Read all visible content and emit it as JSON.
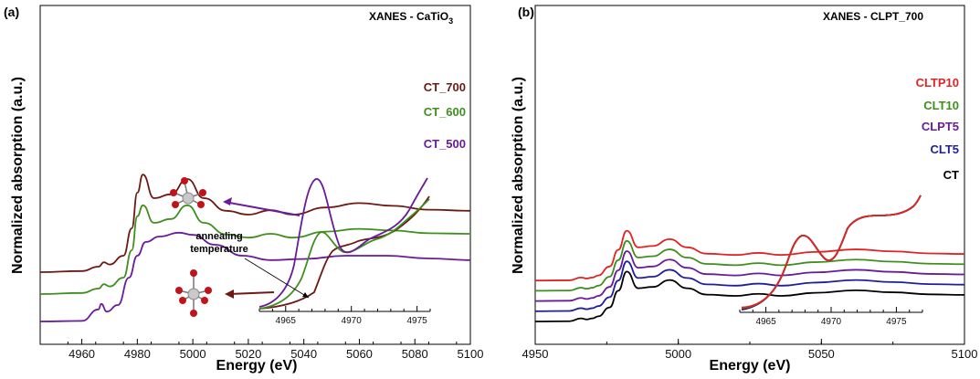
{
  "panel_a": {
    "label": "(a)",
    "title": "XANES - CaTiO",
    "title_sub": "3",
    "xlabel": "Energy (eV)",
    "ylabel": "Normalized absorption (a.u.)",
    "inset_ticks": [
      "4965",
      "4970",
      "4975"
    ],
    "annotation": [
      "annealing",
      "temperature"
    ],
    "colors": {
      "CT_700": "#6b1a14",
      "CT_600": "#3f8f1e",
      "CT_500": "#6a1b9a"
    }
  },
  "panel_b": {
    "label": "(b)",
    "title": "XANES - CLPT_700",
    "xlabel": "Energy (eV)",
    "ylabel": "Normalized absorption (a.u.)",
    "inset_ticks": [
      "4965",
      "4970",
      "4975"
    ],
    "colors": {
      "CLTP10": "#e02424",
      "CLT10": "#3f8f1e",
      "CLPT5": "#6a1b9a",
      "CLT5": "#1f1f9a",
      "CT": "#000000"
    }
  },
  "chart_data": [
    {
      "type": "line",
      "title": "XANES - CaTiO3",
      "xlabel": "Energy (eV)",
      "ylabel": "Normalized absorption (a.u.)",
      "xlim": [
        4945,
        5100
      ],
      "xticks": [
        4960,
        4980,
        5000,
        5020,
        5040,
        5060,
        5080,
        5100
      ],
      "yticks_shown": false,
      "series": [
        {
          "name": "CT_700",
          "offset": 0.9,
          "peak_white_line_x": 4982,
          "x": [
            4945,
            4960,
            4966,
            4968,
            4970,
            4975,
            4978,
            4980,
            4982,
            4986,
            4992,
            4998,
            5004,
            5012,
            5020,
            5028,
            5036,
            5048,
            5060,
            5072,
            5085,
            5100
          ],
          "y": [
            0.0,
            0.02,
            0.1,
            0.18,
            0.14,
            0.3,
            0.8,
            1.45,
            1.78,
            1.35,
            1.42,
            1.7,
            1.35,
            1.12,
            1.05,
            1.13,
            1.05,
            1.18,
            1.26,
            1.21,
            1.14,
            1.12
          ]
        },
        {
          "name": "CT_600",
          "offset": 0.5,
          "x": [
            4945,
            4960,
            4966,
            4968,
            4970,
            4975,
            4978,
            4980,
            4982,
            4986,
            4992,
            4998,
            5004,
            5012,
            5020,
            5028,
            5036,
            5048,
            5060,
            5072,
            5085,
            5100
          ],
          "y": [
            0.0,
            0.02,
            0.1,
            0.18,
            0.14,
            0.3,
            0.8,
            1.42,
            1.62,
            1.3,
            1.37,
            1.62,
            1.3,
            1.09,
            1.03,
            1.1,
            1.03,
            1.14,
            1.19,
            1.16,
            1.11,
            1.1
          ]
        },
        {
          "name": "CT_500",
          "offset": 0.0,
          "x": [
            4945,
            4960,
            4966,
            4967,
            4969,
            4973,
            4977,
            4980,
            4983,
            4988,
            4995,
            5000,
            5008,
            5018,
            5028,
            5040,
            5055,
            5070,
            5085,
            5100
          ],
          "y": [
            0.0,
            0.01,
            0.22,
            0.32,
            0.18,
            0.3,
            0.8,
            1.2,
            1.45,
            1.55,
            1.62,
            1.58,
            1.4,
            1.2,
            1.12,
            1.14,
            1.2,
            1.2,
            1.15,
            1.12
          ]
        }
      ],
      "inset": {
        "xlim": [
          4963,
          4976
        ],
        "xticks": [
          4965,
          4970,
          4975
        ],
        "series_names": [
          "CT_500",
          "CT_600",
          "CT_700"
        ]
      }
    },
    {
      "type": "line",
      "title": "XANES - CLPT_700",
      "xlabel": "Energy (eV)",
      "ylabel": "Normalized absorption (a.u.)",
      "xlim": [
        4950,
        5100
      ],
      "xticks": [
        4950,
        5000,
        5050,
        5100
      ],
      "yticks_shown": false,
      "series": [
        {
          "name": "CLTP10",
          "offset": 1.6,
          "x": [
            4950,
            4962,
            4966,
            4968,
            4970,
            4972,
            4976,
            4979,
            4982,
            4986,
            4991,
            4997,
            5003,
            5010,
            5020,
            5028,
            5036,
            5048,
            5062,
            5075,
            5088,
            5100
          ],
          "y": [
            0.0,
            0.01,
            0.12,
            0.08,
            0.12,
            0.2,
            0.55,
            1.2,
            1.95,
            1.3,
            1.35,
            1.62,
            1.3,
            1.05,
            1.0,
            1.08,
            1.0,
            1.12,
            1.22,
            1.14,
            1.06,
            1.04
          ]
        },
        {
          "name": "CLT10",
          "offset": 1.2,
          "x": [
            4950,
            4962,
            4966,
            4968,
            4970,
            4972,
            4976,
            4979,
            4982,
            4986,
            4991,
            4997,
            5003,
            5010,
            5020,
            5028,
            5036,
            5048,
            5062,
            5075,
            5088,
            5100
          ],
          "y": [
            0.0,
            0.01,
            0.12,
            0.08,
            0.12,
            0.2,
            0.55,
            1.2,
            1.95,
            1.3,
            1.35,
            1.62,
            1.3,
            1.05,
            1.0,
            1.08,
            1.0,
            1.12,
            1.22,
            1.14,
            1.06,
            1.04
          ]
        },
        {
          "name": "CLPT5",
          "offset": 0.8,
          "x": [
            4950,
            4962,
            4966,
            4968,
            4970,
            4972,
            4976,
            4979,
            4982,
            4986,
            4991,
            4997,
            5003,
            5010,
            5020,
            5028,
            5036,
            5048,
            5062,
            5075,
            5088,
            5100
          ],
          "y": [
            0.0,
            0.01,
            0.12,
            0.08,
            0.12,
            0.2,
            0.55,
            1.2,
            1.95,
            1.3,
            1.35,
            1.62,
            1.3,
            1.05,
            1.0,
            1.08,
            1.0,
            1.12,
            1.22,
            1.14,
            1.06,
            1.04
          ]
        },
        {
          "name": "CLT5",
          "offset": 0.4,
          "x": [
            4950,
            4962,
            4966,
            4968,
            4970,
            4972,
            4976,
            4979,
            4982,
            4986,
            4991,
            4997,
            5003,
            5010,
            5020,
            5028,
            5036,
            5048,
            5062,
            5075,
            5088,
            5100
          ],
          "y": [
            0.0,
            0.01,
            0.12,
            0.08,
            0.12,
            0.2,
            0.55,
            1.2,
            1.95,
            1.3,
            1.35,
            1.62,
            1.3,
            1.05,
            1.0,
            1.08,
            1.0,
            1.12,
            1.22,
            1.14,
            1.06,
            1.04
          ]
        },
        {
          "name": "CT",
          "offset": 0.0,
          "x": [
            4950,
            4962,
            4966,
            4968,
            4970,
            4972,
            4976,
            4979,
            4982,
            4986,
            4991,
            4997,
            5003,
            5010,
            5020,
            5028,
            5036,
            5048,
            5062,
            5075,
            5088,
            5100
          ],
          "y": [
            0.0,
            0.01,
            0.12,
            0.08,
            0.12,
            0.2,
            0.55,
            1.2,
            1.95,
            1.3,
            1.35,
            1.62,
            1.3,
            1.05,
            1.0,
            1.08,
            1.0,
            1.12,
            1.22,
            1.14,
            1.06,
            1.04
          ]
        }
      ],
      "inset": {
        "xlim": [
          4963,
          4977
        ],
        "xticks": [
          4965,
          4970,
          4975
        ]
      }
    }
  ]
}
